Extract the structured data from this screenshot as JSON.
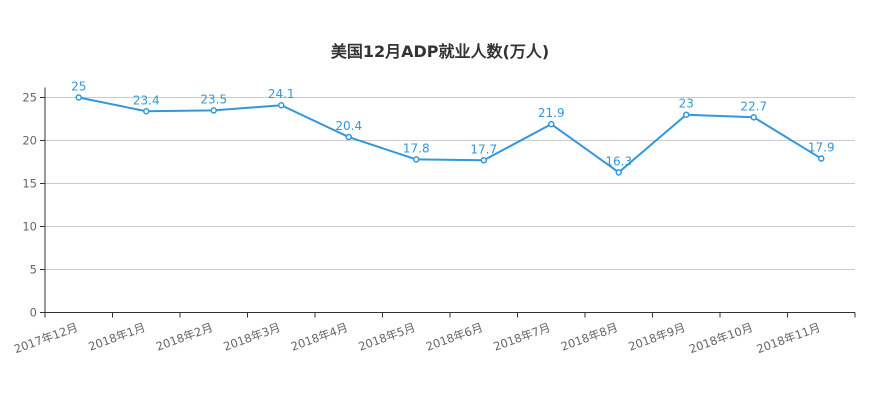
{
  "chart_data": {
    "type": "line",
    "title": "美国12月ADP就业人数(万人)",
    "xlabel": "",
    "ylabel": "",
    "categories": [
      "2017年12月",
      "2018年1月",
      "2018年2月",
      "2018年3月",
      "2018年4月",
      "2018年5月",
      "2018年6月",
      "2018年7月",
      "2018年8月",
      "2018年9月",
      "2018年10月",
      "2018年11月"
    ],
    "series": [
      {
        "values": [
          25,
          23.4,
          23.5,
          24.1,
          20.4,
          17.8,
          17.7,
          21.9,
          16.3,
          23,
          22.7,
          17.9
        ],
        "color": "#3398db"
      }
    ],
    "data_labels": [
      "25",
      "23.4",
      "23.5",
      "24.1",
      "20.4",
      "17.8",
      "17.7",
      "21.9",
      "16.3",
      "23",
      "22.7",
      "17.9"
    ],
    "ylim": [
      0,
      25
    ],
    "yticks": [
      0,
      5,
      10,
      15,
      20,
      25
    ],
    "grid": true,
    "legend": "none"
  }
}
